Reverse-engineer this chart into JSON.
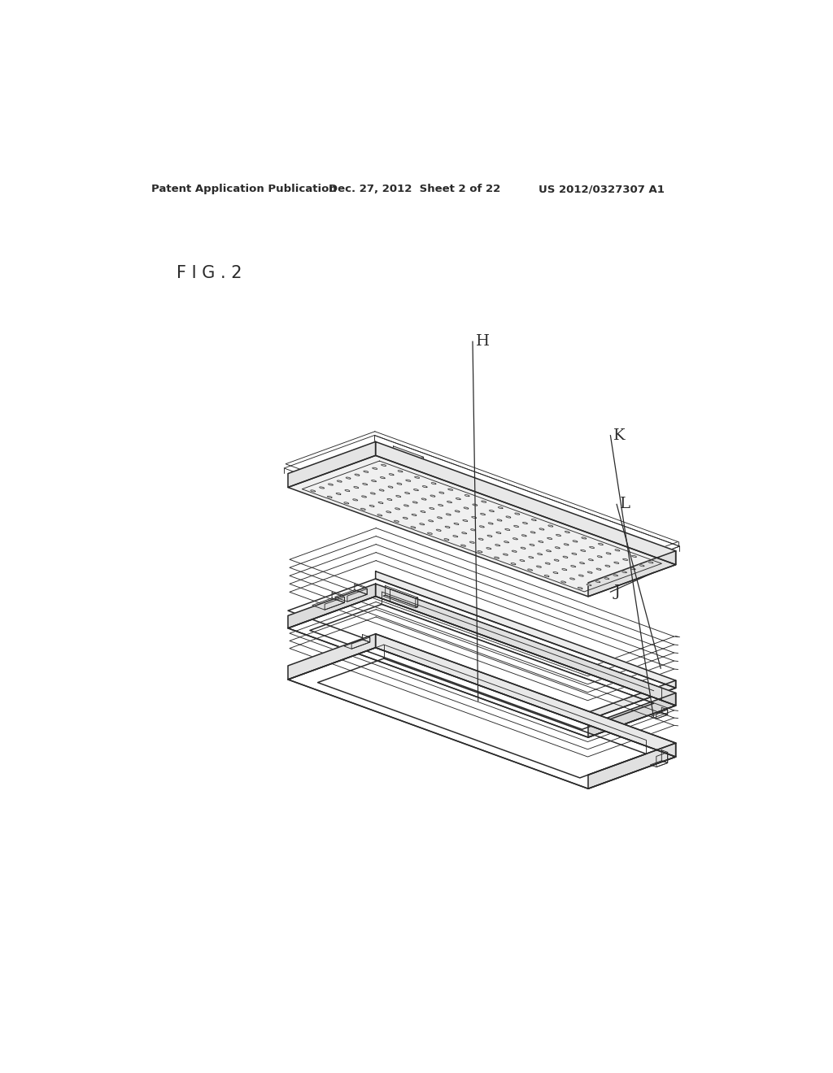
{
  "bg_color": "#ffffff",
  "header_left": "Patent Application Publication",
  "header_mid": "Dec. 27, 2012  Sheet 2 of 22",
  "header_right": "US 2012/0327307 A1",
  "fig_label": "F I G . 2",
  "label_H": "H",
  "label_K": "K",
  "label_L": "L",
  "label_J": "J",
  "line_color": "#2a2a2a",
  "line_width": 1.1,
  "thin_line": 0.65
}
